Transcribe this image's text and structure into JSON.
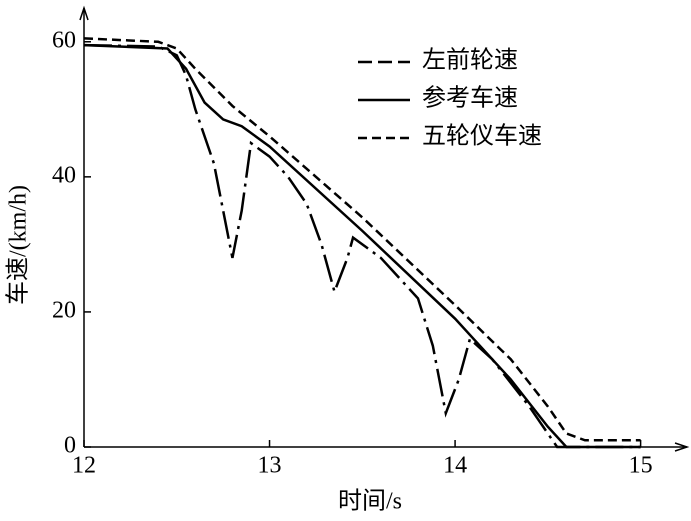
{
  "chart_data": {
    "type": "line",
    "x_label": "时间/s",
    "y_label": "车速/(km/h)",
    "xlim": [
      12,
      15.25
    ],
    "ylim": [
      0,
      65
    ],
    "xticks": [
      12,
      13,
      14,
      15
    ],
    "yticks": [
      0,
      20,
      40,
      60
    ],
    "grid": false,
    "legend": "upper right",
    "series": [
      {
        "name": "左前轮速",
        "color": "#000000",
        "style": "dashdot",
        "x": [
          12,
          12.4,
          12.5,
          12.55,
          12.6,
          12.7,
          12.75,
          12.8,
          12.85,
          12.9,
          13.0,
          13.1,
          13.2,
          13.28,
          13.35,
          13.42,
          13.45,
          13.6,
          13.8,
          13.88,
          13.95,
          14.02,
          14.08,
          14.2,
          14.4,
          14.5,
          14.55,
          15.0
        ],
        "values": [
          59.5,
          59.3,
          58,
          55,
          50,
          42,
          35,
          28,
          35,
          45,
          43,
          40,
          36,
          30,
          23,
          28,
          31,
          28,
          22,
          15,
          5,
          10,
          16,
          13,
          6,
          2,
          0,
          0
        ]
      },
      {
        "name": "参考车速",
        "color": "#000000",
        "style": "solid",
        "x": [
          12,
          12.45,
          12.55,
          12.65,
          12.75,
          12.85,
          13.0,
          13.5,
          14.0,
          14.1,
          14.3,
          14.5,
          14.6,
          15.0
        ],
        "values": [
          59.5,
          59,
          56,
          51,
          48.5,
          47.5,
          44.5,
          32,
          19,
          16,
          10,
          3,
          0,
          0
        ]
      },
      {
        "name": "五轮仪车速",
        "color": "#000000",
        "style": "dashed",
        "x": [
          12,
          12.4,
          12.5,
          12.6,
          12.8,
          13.0,
          13.5,
          14.0,
          14.3,
          14.5,
          14.6,
          14.7,
          15.0
        ],
        "values": [
          60.5,
          60,
          59,
          56,
          50.5,
          46,
          34,
          21,
          13,
          6,
          2,
          1,
          1
        ]
      }
    ]
  }
}
